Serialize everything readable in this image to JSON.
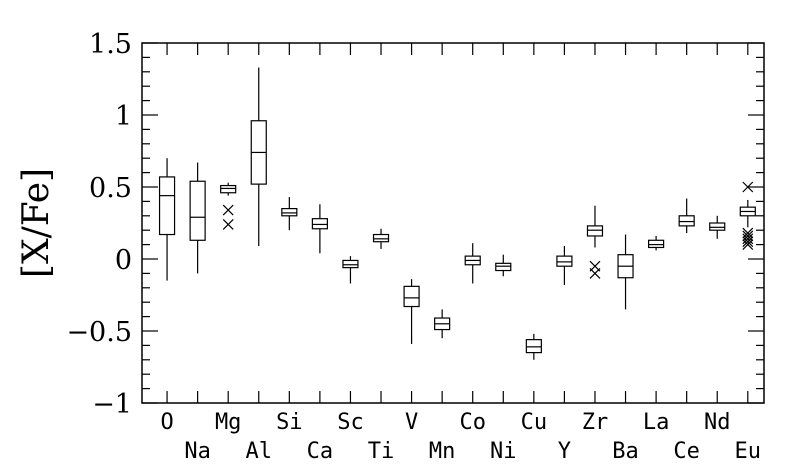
{
  "chart_data": {
    "type": "box",
    "ylabel": "[X/Fe]",
    "xlabel": "",
    "ylim": [
      -1,
      1.5
    ],
    "y_ticks": [
      "1.5",
      "1",
      "0.5",
      "0",
      "−0.5",
      "−1"
    ],
    "y_tick_values": [
      1.5,
      1,
      0.5,
      0,
      -0.5,
      -1
    ],
    "grid": false,
    "categories": [
      "O",
      "Na",
      "Mg",
      "Al",
      "Si",
      "Ca",
      "Sc",
      "Ti",
      "V",
      "Mn",
      "Co",
      "Ni",
      "Cu",
      "Y",
      "Zr",
      "Ba",
      "La",
      "Ce",
      "Nd",
      "Eu"
    ],
    "boxes": [
      {
        "min": -0.15,
        "q1": 0.17,
        "median": 0.44,
        "q3": 0.57,
        "max": 0.7,
        "outliers": []
      },
      {
        "min": -0.1,
        "q1": 0.13,
        "median": 0.29,
        "q3": 0.54,
        "max": 0.67,
        "outliers": []
      },
      {
        "min": 0.44,
        "q1": 0.46,
        "median": 0.49,
        "q3": 0.51,
        "max": 0.53,
        "outliers": [
          0.34,
          0.24
        ]
      },
      {
        "min": 0.09,
        "q1": 0.52,
        "median": 0.74,
        "q3": 0.96,
        "max": 1.33,
        "outliers": []
      },
      {
        "min": 0.2,
        "q1": 0.3,
        "median": 0.32,
        "q3": 0.35,
        "max": 0.43,
        "outliers": []
      },
      {
        "min": 0.04,
        "q1": 0.21,
        "median": 0.24,
        "q3": 0.28,
        "max": 0.38,
        "outliers": []
      },
      {
        "min": -0.17,
        "q1": -0.06,
        "median": -0.04,
        "q3": -0.01,
        "max": 0.02,
        "outliers": []
      },
      {
        "min": 0.07,
        "q1": 0.12,
        "median": 0.14,
        "q3": 0.17,
        "max": 0.21,
        "outliers": []
      },
      {
        "min": -0.59,
        "q1": -0.33,
        "median": -0.27,
        "q3": -0.19,
        "max": -0.14,
        "outliers": []
      },
      {
        "min": -0.55,
        "q1": -0.49,
        "median": -0.45,
        "q3": -0.41,
        "max": -0.35,
        "outliers": []
      },
      {
        "min": -0.17,
        "q1": -0.04,
        "median": -0.01,
        "q3": 0.02,
        "max": 0.11,
        "outliers": []
      },
      {
        "min": -0.12,
        "q1": -0.08,
        "median": -0.05,
        "q3": -0.03,
        "max": 0.03,
        "outliers": []
      },
      {
        "min": -0.7,
        "q1": -0.65,
        "median": -0.61,
        "q3": -0.56,
        "max": -0.52,
        "outliers": []
      },
      {
        "min": -0.18,
        "q1": -0.05,
        "median": -0.02,
        "q3": 0.02,
        "max": 0.09,
        "outliers": []
      },
      {
        "min": 0.08,
        "q1": 0.16,
        "median": 0.2,
        "q3": 0.23,
        "max": 0.37,
        "outliers": [
          -0.05,
          -0.1
        ]
      },
      {
        "min": -0.35,
        "q1": -0.13,
        "median": -0.05,
        "q3": 0.03,
        "max": 0.17,
        "outliers": []
      },
      {
        "min": 0.06,
        "q1": 0.08,
        "median": 0.1,
        "q3": 0.13,
        "max": 0.16,
        "outliers": []
      },
      {
        "min": 0.18,
        "q1": 0.23,
        "median": 0.26,
        "q3": 0.3,
        "max": 0.42,
        "outliers": []
      },
      {
        "min": 0.14,
        "q1": 0.2,
        "median": 0.22,
        "q3": 0.25,
        "max": 0.3,
        "outliers": []
      },
      {
        "min": 0.22,
        "q1": 0.3,
        "median": 0.33,
        "q3": 0.36,
        "max": 0.41,
        "outliers": [
          0.5,
          0.18,
          0.16,
          0.14,
          0.12,
          0.1
        ]
      }
    ]
  }
}
